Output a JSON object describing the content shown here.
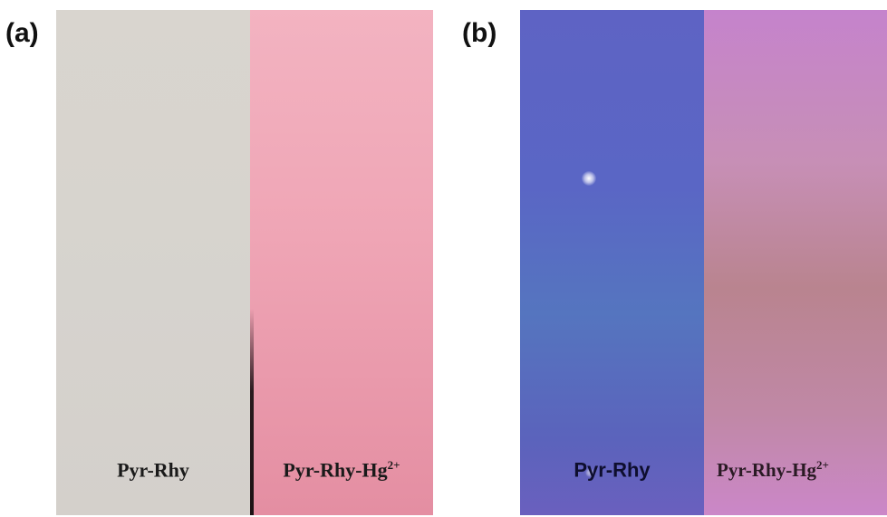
{
  "panels": [
    {
      "label": "(a)",
      "strips": [
        {
          "caption_main": "Pyr-Rhy",
          "caption_sup": "",
          "color": "#d6d3cd"
        },
        {
          "caption_main": "Pyr-Rhy-Hg",
          "caption_sup": "2+",
          "color": "#efa5b5"
        }
      ]
    },
    {
      "label": "(b)",
      "strips": [
        {
          "caption_main": "Pyr-Rhy",
          "caption_sup": "",
          "color": "#5a66c5"
        },
        {
          "caption_main": "Pyr-Rhy-Hg",
          "caption_sup": "2+",
          "color": "#c088a6"
        }
      ]
    }
  ]
}
